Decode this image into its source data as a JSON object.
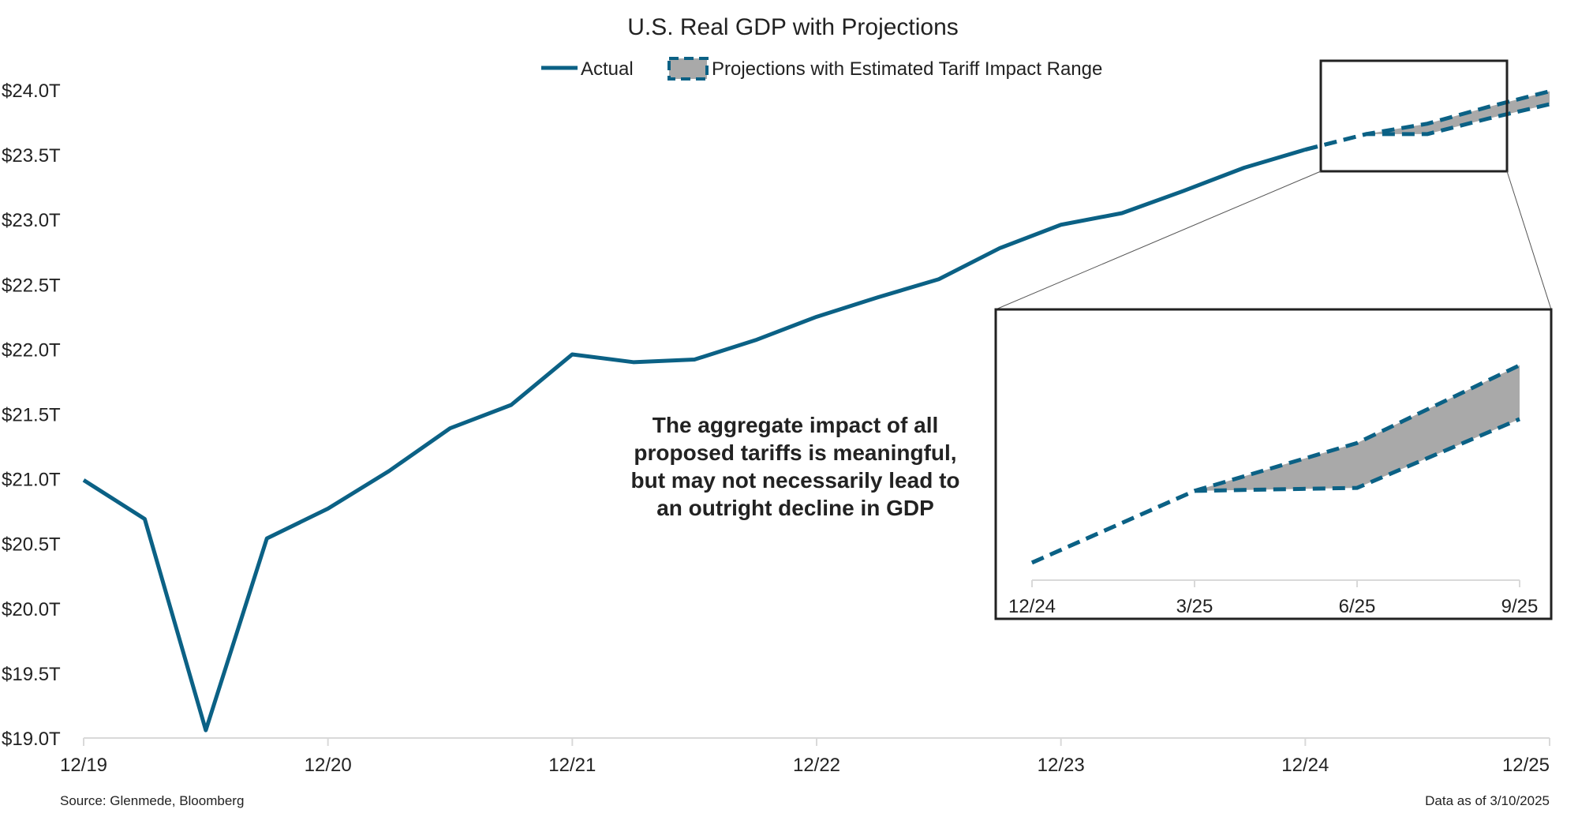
{
  "chart_data": {
    "type": "line",
    "title": "U.S. Real GDP with Projections",
    "xlabel": "",
    "ylabel": "",
    "colors": {
      "line": "#0b6185",
      "band": "#a9a9a9",
      "inset_border": "#222222"
    },
    "x_ticks": [
      "12/19",
      "12/20",
      "12/21",
      "12/22",
      "12/23",
      "12/24",
      "12/25"
    ],
    "y_ticks": [
      "$19.0T",
      "$19.5T",
      "$20.0T",
      "$20.5T",
      "$21.0T",
      "$21.5T",
      "$22.0T",
      "$22.5T",
      "$23.0T",
      "$23.5T",
      "$24.0T"
    ],
    "ylim": [
      19.0,
      24.1
    ],
    "xlim": [
      "2019-12",
      "2025-12"
    ],
    "legend": {
      "placement": "top-center",
      "items": [
        {
          "label": "Actual",
          "style": "solid-line"
        },
        {
          "label": "Projections with Estimated Tariff Impact Range",
          "style": "dashed-band"
        }
      ]
    },
    "series": [
      {
        "name": "Actual",
        "x": [
          "2019-12",
          "2020-03",
          "2020-06",
          "2020-09",
          "2020-12",
          "2021-03",
          "2021-06",
          "2021-09",
          "2021-12",
          "2022-03",
          "2022-06",
          "2022-09",
          "2022-12",
          "2023-03",
          "2023-06",
          "2023-09",
          "2023-12",
          "2024-03",
          "2024-06",
          "2024-09",
          "2024-12"
        ],
        "values": [
          20.99,
          20.69,
          19.06,
          20.54,
          20.77,
          21.06,
          21.39,
          21.57,
          21.96,
          21.9,
          21.92,
          22.07,
          22.25,
          22.4,
          22.54,
          22.78,
          22.96,
          23.05,
          23.22,
          23.4,
          23.54
        ]
      },
      {
        "name": "Projections with Estimated Tariff Impact Range",
        "x": [
          "2024-12",
          "2025-03",
          "2025-06",
          "2025-09",
          "2025-12"
        ],
        "upper": [
          23.54,
          23.66,
          23.74,
          23.87,
          23.99
        ],
        "lower": [
          23.54,
          23.66,
          23.66,
          23.78,
          23.89
        ]
      }
    ],
    "inset": {
      "x_ticks": [
        "12/24",
        "3/25",
        "6/25",
        "9/25"
      ],
      "x": [
        "2024-12",
        "2025-03",
        "2025-06",
        "2025-09"
      ],
      "upper": [
        23.54,
        23.66,
        23.74,
        23.87
      ],
      "lower": [
        23.54,
        23.66,
        23.665,
        23.78
      ],
      "ylim": [
        23.52,
        23.9
      ]
    },
    "annotation": [
      "The aggregate impact of all",
      "proposed tariffs is meaningful,",
      "but may not necessarily lead to",
      "an outright decline in GDP"
    ]
  },
  "footer": {
    "source": "Source: Glenmede, Bloomberg",
    "date": "Data as of 3/10/2025"
  }
}
